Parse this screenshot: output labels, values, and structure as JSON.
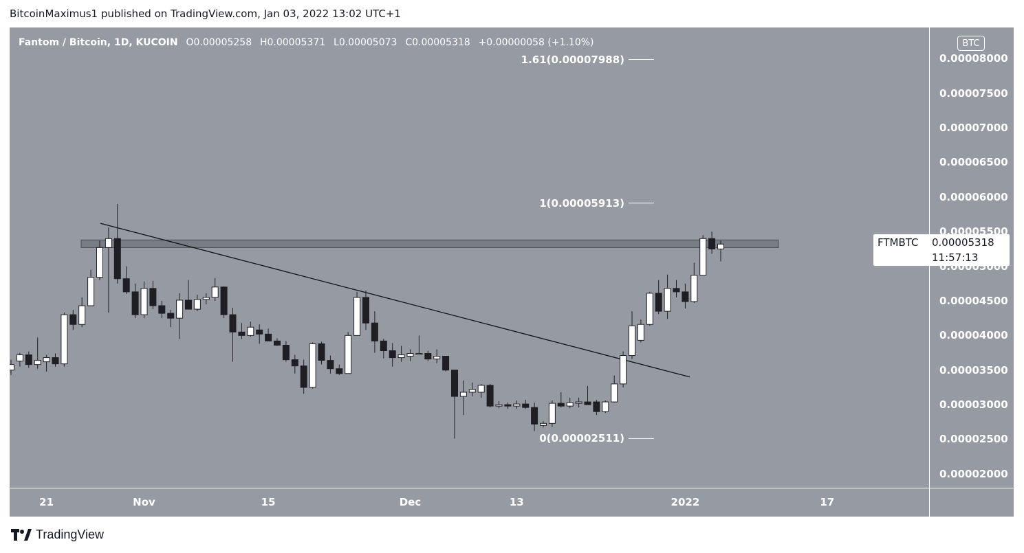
{
  "header": {
    "publisher_line": "BitcoinMaximus1 published on TradingView.com, Jan 03, 2022 13:02 UTC+1"
  },
  "symbol_info": {
    "title": "Fantom / Bitcoin, 1D, KUCOIN",
    "open": "O0.00005258",
    "high": "H0.00005371",
    "low": "L0.00005073",
    "close": "C0.00005318",
    "change": "+0.00000058 (+1.10%)"
  },
  "currency_badge": "BTC",
  "last_price": {
    "symbol": "FTMBTC",
    "value": "0.00005318",
    "countdown": "11:57:13"
  },
  "footer": {
    "brand": "TradingView"
  },
  "colors": {
    "background": "#969aa3",
    "bull_candle": "#ffffff",
    "bear_candle": "#1e1e23",
    "text": "#ffffff"
  },
  "chart_data": {
    "type": "candlestick",
    "title": "Fantom / Bitcoin, 1D, KUCOIN",
    "ylim": [
      1.8e-05,
      8.45e-05
    ],
    "y_ticks": [
      {
        "value": 8e-05,
        "label": "0.00008000"
      },
      {
        "value": 7.5e-05,
        "label": "0.00007500"
      },
      {
        "value": 7e-05,
        "label": "0.00007000"
      },
      {
        "value": 6.5e-05,
        "label": "0.00006500"
      },
      {
        "value": 6e-05,
        "label": "0.00006000"
      },
      {
        "value": 5.5e-05,
        "label": "0.00005500"
      },
      {
        "value": 5e-05,
        "label": "0.00005000"
      },
      {
        "value": 4.5e-05,
        "label": "0.00004500"
      },
      {
        "value": 4e-05,
        "label": "0.00004000"
      },
      {
        "value": 3.5e-05,
        "label": "0.00003500"
      },
      {
        "value": 3e-05,
        "label": "0.00003000"
      },
      {
        "value": 2.5e-05,
        "label": "0.00002500"
      },
      {
        "value": 2e-05,
        "label": "0.00002000"
      }
    ],
    "x_ticks": [
      {
        "index": 4,
        "label": "21"
      },
      {
        "index": 15,
        "label": "Nov"
      },
      {
        "index": 29,
        "label": "15"
      },
      {
        "index": 45,
        "label": "Dec"
      },
      {
        "index": 57,
        "label": "13"
      },
      {
        "index": 76,
        "label": "2022"
      },
      {
        "index": 92,
        "label": "17"
      }
    ],
    "candles": [
      {
        "o": 3.5e-05,
        "h": 3.65e-05,
        "l": 3.43e-05,
        "c": 3.58e-05
      },
      {
        "o": 3.63e-05,
        "h": 3.75e-05,
        "l": 3.55e-05,
        "c": 3.72e-05
      },
      {
        "o": 3.72e-05,
        "h": 3.77e-05,
        "l": 3.53e-05,
        "c": 3.58e-05
      },
      {
        "o": 3.58e-05,
        "h": 3.97e-05,
        "l": 3.52e-05,
        "c": 3.64e-05
      },
      {
        "o": 3.62e-05,
        "h": 3.72e-05,
        "l": 3.48e-05,
        "c": 3.68e-05
      },
      {
        "o": 3.68e-05,
        "h": 3.74e-05,
        "l": 3.55e-05,
        "c": 3.59e-05
      },
      {
        "o": 3.59e-05,
        "h": 4.33e-05,
        "l": 3.55e-05,
        "c": 4.3e-05
      },
      {
        "o": 4.3e-05,
        "h": 4.37e-05,
        "l": 4.08e-05,
        "c": 4.16e-05
      },
      {
        "o": 4.16e-05,
        "h": 4.55e-05,
        "l": 4.12e-05,
        "c": 4.43e-05
      },
      {
        "o": 4.43e-05,
        "h": 4.95e-05,
        "l": 4.43e-05,
        "c": 4.84e-05
      },
      {
        "o": 4.84e-05,
        "h": 5.37e-05,
        "l": 4.8e-05,
        "c": 5.27e-05
      },
      {
        "o": 5.27e-05,
        "h": 5.56e-05,
        "l": 4.33e-05,
        "c": 5.4e-05
      },
      {
        "o": 5.4e-05,
        "h": 5.9e-05,
        "l": 4.75e-05,
        "c": 4.82e-05
      },
      {
        "o": 4.82e-05,
        "h": 5e-05,
        "l": 4.6e-05,
        "c": 4.63e-05
      },
      {
        "o": 4.63e-05,
        "h": 4.75e-05,
        "l": 4.25e-05,
        "c": 4.3e-05
      },
      {
        "o": 4.3e-05,
        "h": 4.78e-05,
        "l": 4.25e-05,
        "c": 4.68e-05
      },
      {
        "o": 4.68e-05,
        "h": 4.79e-05,
        "l": 4.38e-05,
        "c": 4.43e-05
      },
      {
        "o": 4.43e-05,
        "h": 4.5e-05,
        "l": 4.25e-05,
        "c": 4.32e-05
      },
      {
        "o": 4.32e-05,
        "h": 4.37e-05,
        "l": 4.12e-05,
        "c": 4.25e-05
      },
      {
        "o": 4.25e-05,
        "h": 4.61e-05,
        "l": 3.95e-05,
        "c": 4.51e-05
      },
      {
        "o": 4.51e-05,
        "h": 4.8e-05,
        "l": 4.4e-05,
        "c": 4.38e-05
      },
      {
        "o": 4.38e-05,
        "h": 4.59e-05,
        "l": 4.35e-05,
        "c": 4.52e-05
      },
      {
        "o": 4.52e-05,
        "h": 4.61e-05,
        "l": 4.45e-05,
        "c": 4.55e-05
      },
      {
        "o": 4.55e-05,
        "h": 4.83e-05,
        "l": 4.5e-05,
        "c": 4.7e-05
      },
      {
        "o": 4.7e-05,
        "h": 4.71e-05,
        "l": 4.25e-05,
        "c": 4.3e-05
      },
      {
        "o": 4.3e-05,
        "h": 4.4e-05,
        "l": 3.62e-05,
        "c": 4.05e-05
      },
      {
        "o": 4.05e-05,
        "h": 4.18e-05,
        "l": 3.95e-05,
        "c": 4e-05
      },
      {
        "o": 4e-05,
        "h": 4.2e-05,
        "l": 3.98e-05,
        "c": 4.12e-05
      },
      {
        "o": 4.08e-05,
        "h": 4.16e-05,
        "l": 3.88e-05,
        "c": 4.02e-05
      },
      {
        "o": 4.02e-05,
        "h": 4.1e-05,
        "l": 3.93e-05,
        "c": 3.92e-05
      },
      {
        "o": 3.92e-05,
        "h": 3.96e-05,
        "l": 3.85e-05,
        "c": 3.86e-05
      },
      {
        "o": 3.86e-05,
        "h": 3.92e-05,
        "l": 3.62e-05,
        "c": 3.65e-05
      },
      {
        "o": 3.65e-05,
        "h": 3.72e-05,
        "l": 3.45e-05,
        "c": 3.56e-05
      },
      {
        "o": 3.56e-05,
        "h": 3.65e-05,
        "l": 3.16e-05,
        "c": 3.25e-05
      },
      {
        "o": 3.25e-05,
        "h": 3.9e-05,
        "l": 3.23e-05,
        "c": 3.88e-05
      },
      {
        "o": 3.88e-05,
        "h": 3.91e-05,
        "l": 3.58e-05,
        "c": 3.64e-05
      },
      {
        "o": 3.64e-05,
        "h": 3.71e-05,
        "l": 3.45e-05,
        "c": 3.52e-05
      },
      {
        "o": 3.52e-05,
        "h": 3.58e-05,
        "l": 3.43e-05,
        "c": 3.45e-05
      },
      {
        "o": 3.45e-05,
        "h": 4.05e-05,
        "l": 3.45e-05,
        "c": 4e-05
      },
      {
        "o": 4e-05,
        "h": 4.63e-05,
        "l": 4e-05,
        "c": 4.55e-05
      },
      {
        "o": 4.55e-05,
        "h": 4.65e-05,
        "l": 4.08e-05,
        "c": 4.18e-05
      },
      {
        "o": 4.18e-05,
        "h": 4.35e-05,
        "l": 3.75e-05,
        "c": 3.92e-05
      },
      {
        "o": 3.92e-05,
        "h": 3.95e-05,
        "l": 3.67e-05,
        "c": 3.78e-05
      },
      {
        "o": 3.78e-05,
        "h": 3.89e-05,
        "l": 3.55e-05,
        "c": 3.68e-05
      },
      {
        "o": 3.68e-05,
        "h": 3.85e-05,
        "l": 3.62e-05,
        "c": 3.72e-05
      },
      {
        "o": 3.7e-05,
        "h": 3.8e-05,
        "l": 3.63e-05,
        "c": 3.74e-05
      },
      {
        "o": 3.74e-05,
        "h": 4e-05,
        "l": 3.72e-05,
        "c": 3.74e-05
      },
      {
        "o": 3.74e-05,
        "h": 3.78e-05,
        "l": 3.63e-05,
        "c": 3.66e-05
      },
      {
        "o": 3.66e-05,
        "h": 3.8e-05,
        "l": 3.6e-05,
        "c": 3.7e-05
      },
      {
        "o": 3.7e-05,
        "h": 3.7e-05,
        "l": 3.48e-05,
        "c": 3.5e-05
      },
      {
        "o": 3.5e-05,
        "h": 3.5e-05,
        "l": 2.51e-05,
        "c": 3.12e-05
      },
      {
        "o": 3.12e-05,
        "h": 3.35e-05,
        "l": 2.85e-05,
        "c": 3.18e-05
      },
      {
        "o": 3.18e-05,
        "h": 3.32e-05,
        "l": 3.12e-05,
        "c": 3.22e-05
      },
      {
        "o": 3.18e-05,
        "h": 3.3e-05,
        "l": 3.1e-05,
        "c": 3.28e-05
      },
      {
        "o": 3.28e-05,
        "h": 3.3e-05,
        "l": 2.96e-05,
        "c": 2.98e-05
      },
      {
        "o": 2.98e-05,
        "h": 3.05e-05,
        "l": 2.95e-05,
        "c": 3e-05
      },
      {
        "o": 3e-05,
        "h": 3.03e-05,
        "l": 2.94e-05,
        "c": 2.98e-05
      },
      {
        "o": 2.98e-05,
        "h": 3.06e-05,
        "l": 2.94e-05,
        "c": 3.01e-05
      },
      {
        "o": 3.01e-05,
        "h": 3.07e-05,
        "l": 2.94e-05,
        "c": 2.96e-05
      },
      {
        "o": 2.96e-05,
        "h": 3.03e-05,
        "l": 2.62e-05,
        "c": 2.72e-05
      },
      {
        "o": 2.7e-05,
        "h": 2.76e-05,
        "l": 2.67e-05,
        "c": 2.73e-05
      },
      {
        "o": 2.73e-05,
        "h": 3.06e-05,
        "l": 2.68e-05,
        "c": 3.02e-05
      },
      {
        "o": 3.02e-05,
        "h": 3.18e-05,
        "l": 2.96e-05,
        "c": 2.98e-05
      },
      {
        "o": 2.98e-05,
        "h": 3.1e-05,
        "l": 2.95e-05,
        "c": 3.03e-05
      },
      {
        "o": 3.02e-05,
        "h": 3.1e-05,
        "l": 2.96e-05,
        "c": 3.04e-05
      },
      {
        "o": 3.04e-05,
        "h": 3.27e-05,
        "l": 3e-05,
        "c": 3e-05
      },
      {
        "o": 3.04e-05,
        "h": 3.07e-05,
        "l": 2.85e-05,
        "c": 2.9e-05
      },
      {
        "o": 2.9e-05,
        "h": 3.06e-05,
        "l": 2.88e-05,
        "c": 3.04e-05
      },
      {
        "o": 3.04e-05,
        "h": 3.42e-05,
        "l": 3.03e-05,
        "c": 3.3e-05
      },
      {
        "o": 3.3e-05,
        "h": 3.77e-05,
        "l": 3.25e-05,
        "c": 3.71e-05
      },
      {
        "o": 3.71e-05,
        "h": 4.35e-05,
        "l": 3.66e-05,
        "c": 4.14e-05
      },
      {
        "o": 3.93e-05,
        "h": 4.23e-05,
        "l": 3.9e-05,
        "c": 4.16e-05
      },
      {
        "o": 4.16e-05,
        "h": 4.63e-05,
        "l": 4.14e-05,
        "c": 4.61e-05
      },
      {
        "o": 4.61e-05,
        "h": 4.8e-05,
        "l": 4.31e-05,
        "c": 4.35e-05
      },
      {
        "o": 4.35e-05,
        "h": 4.88e-05,
        "l": 4.24e-05,
        "c": 4.68e-05
      },
      {
        "o": 4.68e-05,
        "h": 4.8e-05,
        "l": 4.55e-05,
        "c": 4.63e-05
      },
      {
        "o": 4.63e-05,
        "h": 4.75e-05,
        "l": 4.39e-05,
        "c": 4.49e-05
      },
      {
        "o": 4.49e-05,
        "h": 5.05e-05,
        "l": 4.47e-05,
        "c": 4.87e-05
      },
      {
        "o": 4.87e-05,
        "h": 5.45e-05,
        "l": 4.87e-05,
        "c": 5.4e-05
      },
      {
        "o": 5.4e-05,
        "h": 5.5e-05,
        "l": 5.18e-05,
        "c": 5.25e-05
      },
      {
        "o": 5.25e-05,
        "h": 5.37e-05,
        "l": 5.07e-05,
        "c": 5.32e-05
      }
    ],
    "annotations": {
      "resistance_zone": {
        "low": 5.27e-05,
        "high": 5.38e-05
      },
      "descending_trendline": {
        "start": {
          "index": 11,
          "value": 5.62e-05
        },
        "end": {
          "index": 83,
          "value": 3.4e-05
        }
      },
      "fib_levels": [
        {
          "label": "1.61(0.00007988)",
          "value": 7.988e-05
        },
        {
          "label": "1(0.00005913)",
          "value": 5.913e-05
        },
        {
          "label": "0(0.00002511)",
          "value": 2.511e-05
        }
      ]
    }
  }
}
